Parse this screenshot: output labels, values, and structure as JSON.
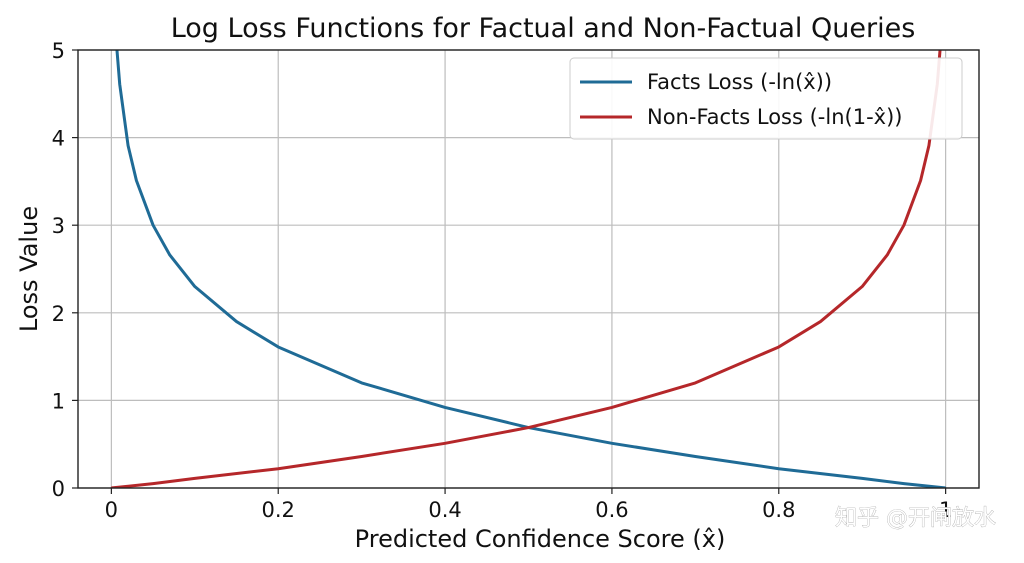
{
  "chart_data": {
    "type": "line",
    "title": "Log Loss Functions for Factual and Non-Factual Queries",
    "xlabel": "Predicted Confidence Score (x̂)",
    "ylabel": "Loss Value",
    "xlim": [
      -0.04,
      1.04
    ],
    "ylim": [
      0,
      5
    ],
    "x_ticks": [
      0,
      0.2,
      0.4,
      0.6,
      0.8,
      1
    ],
    "x_tick_labels": [
      "0",
      "0.2",
      "0.4",
      "0.6",
      "0.8",
      "1"
    ],
    "y_ticks": [
      0,
      1,
      2,
      3,
      4,
      5
    ],
    "y_tick_labels": [
      "0",
      "1",
      "2",
      "3",
      "4",
      "5"
    ],
    "grid": true,
    "legend_position": "top-right",
    "series": [
      {
        "name": "Facts Loss (-ln(x̂))",
        "color": "#1f6b96",
        "x": [
          0.0067,
          0.01,
          0.02,
          0.03,
          0.05,
          0.07,
          0.1,
          0.15,
          0.2,
          0.3,
          0.4,
          0.5,
          0.6,
          0.7,
          0.8,
          0.9,
          0.95,
          0.999
        ],
        "y": [
          5.0,
          4.61,
          3.91,
          3.51,
          3.0,
          2.66,
          2.3,
          1.9,
          1.61,
          1.2,
          0.92,
          0.69,
          0.51,
          0.36,
          0.22,
          0.11,
          0.05,
          0.001
        ]
      },
      {
        "name": "Non-Facts Loss (-ln(1-x̂))",
        "color": "#b5272a",
        "x": [
          0.001,
          0.05,
          0.1,
          0.2,
          0.3,
          0.4,
          0.5,
          0.6,
          0.7,
          0.8,
          0.85,
          0.9,
          0.93,
          0.95,
          0.97,
          0.98,
          0.99,
          0.9933
        ],
        "y": [
          0.001,
          0.05,
          0.11,
          0.22,
          0.36,
          0.51,
          0.69,
          0.92,
          1.2,
          1.61,
          1.9,
          2.3,
          2.66,
          3.0,
          3.51,
          3.91,
          4.61,
          5.0
        ]
      }
    ]
  },
  "watermark": {
    "text": "知乎 @开闸放水"
  }
}
